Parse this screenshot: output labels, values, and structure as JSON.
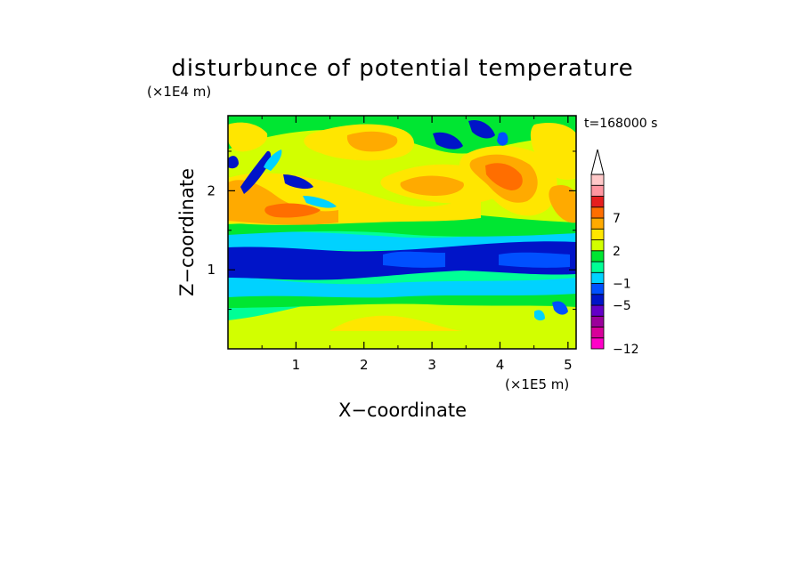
{
  "chart_data": {
    "type": "heatmap",
    "title": "disturbunce of potential temperature",
    "xlabel": "X−coordinate",
    "ylabel": "Z−coordinate",
    "x_scale_note": "(×1E5 m)",
    "y_scale_note": "(×1E4 m)",
    "time_label": "t=168000 s",
    "xlim": [
      0,
      5.12
    ],
    "ylim": [
      0,
      2.95
    ],
    "x_ticks": [
      1,
      2,
      3,
      4,
      5
    ],
    "x_tick_labels": [
      "1",
      "2",
      "3",
      "4",
      "5"
    ],
    "y_ticks": [
      1,
      2
    ],
    "y_tick_labels": [
      "1",
      "2"
    ],
    "colorbar": {
      "levels": [
        -12,
        -11,
        -9,
        -7,
        -5,
        -3,
        -1,
        0,
        1,
        2,
        3,
        5,
        7,
        9,
        11
      ],
      "labels": [
        {
          "value": -12,
          "text": "−12"
        },
        {
          "value": -5,
          "text": "−5"
        },
        {
          "value": -1,
          "text": "−1"
        },
        {
          "value": 2,
          "text": "2"
        },
        {
          "value": 7,
          "text": "7"
        }
      ],
      "colors": [
        "#ff00c8",
        "#d7009a",
        "#9b009b",
        "#6400c8",
        "#0014c8",
        "#0050ff",
        "#00d2ff",
        "#00ff96",
        "#00e632",
        "#d2ff00",
        "#ffe600",
        "#ffaa00",
        "#ff6e00",
        "#e61e1e",
        "#ff96a0",
        "#ffc8c8"
      ],
      "extend": "max-arrow"
    },
    "field_description_bands": [
      {
        "z_range": [
          0.0,
          0.2
        ],
        "dominant_value": 1.5
      },
      {
        "z_range": [
          0.2,
          0.7
        ],
        "dominant_value": 1.5
      },
      {
        "z_range": [
          0.7,
          0.95
        ],
        "dominant_value": -1
      },
      {
        "z_range": [
          0.95,
          1.4
        ],
        "dominant_value": -5
      },
      {
        "z_range": [
          1.4,
          1.65
        ],
        "dominant_value": -1
      },
      {
        "z_range": [
          1.65,
          2.95
        ],
        "dominant_value": 2
      }
    ]
  }
}
